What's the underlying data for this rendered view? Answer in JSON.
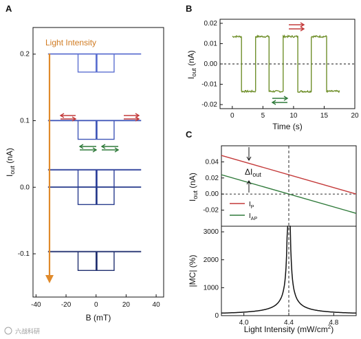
{
  "figure": {
    "panels": [
      "A",
      "B",
      "C"
    ],
    "watermark": "六战科研"
  },
  "chart_data": [
    {
      "id": "A",
      "type": "line",
      "xlabel": "B (mT)",
      "ylabel": "I_out (nA)",
      "xlim": [
        -42,
        45
      ],
      "ylim": [
        -0.165,
        0.24
      ],
      "xticks": [
        -40,
        -20,
        0,
        20,
        40
      ],
      "yticks": [
        -0.1,
        0.0,
        0.1,
        0.2
      ],
      "annotation": "Light Intensity",
      "hysteresis_loops": [
        {
          "baseline": 0.2,
          "step_high": 0.2,
          "step_low": 0.173,
          "switch_field": 12,
          "inner_step": 0.186,
          "color": "#5b6fd0"
        },
        {
          "baseline": 0.1,
          "step_high": 0.1,
          "step_low": 0.072,
          "switch_field": 12,
          "inner_step": 0.086,
          "color": "#3f56b8"
        },
        {
          "baseline": 0.026,
          "step_high": 0.026,
          "step_low": 0.0,
          "switch_field": 12,
          "inner_step": 0.012,
          "color": "#2c3f9a"
        },
        {
          "baseline": 0.0,
          "step_high": 0.0,
          "step_low": -0.026,
          "switch_field": 12,
          "inner_step": -0.013,
          "color": "#263a8c"
        },
        {
          "baseline": -0.097,
          "step_high": -0.097,
          "step_low": -0.125,
          "switch_field": 12,
          "inner_step": -0.11,
          "color": "#1f2e6e"
        }
      ],
      "field_range": [
        -32,
        30
      ]
    },
    {
      "id": "B",
      "type": "line",
      "xlabel": "Time (s)",
      "ylabel": "I_out (nA)",
      "xlim": [
        -2,
        20
      ],
      "ylim": [
        -0.022,
        0.022
      ],
      "xticks": [
        0,
        5,
        10,
        15,
        20
      ],
      "yticks": [
        -0.02,
        -0.01,
        0.0,
        0.01,
        0.02
      ],
      "series": [
        {
          "color": "#6f8f2a",
          "high": 0.0135,
          "low": -0.0135,
          "segments": [
            [
              0,
              1.5,
              "high"
            ],
            [
              1.5,
              3.8,
              "low"
            ],
            [
              3.8,
              6.0,
              "high"
            ],
            [
              6.0,
              8.3,
              "low"
            ],
            [
              8.3,
              10.7,
              "high"
            ],
            [
              10.7,
              12.9,
              "low"
            ],
            [
              12.9,
              15.4,
              "high"
            ],
            [
              15.4,
              17.5,
              "low"
            ]
          ]
        }
      ],
      "zero_line": "dashed"
    },
    {
      "id": "C_top",
      "type": "line",
      "xlabel": "",
      "ylabel": "I_out (nA)",
      "xlim": [
        3.8,
        5.0
      ],
      "ylim": [
        -0.04,
        0.06
      ],
      "yticks": [
        -0.02,
        0.0,
        0.02,
        0.04
      ],
      "series": [
        {
          "name": "I_P",
          "color": "#c43a3a",
          "x": [
            3.8,
            5.0
          ],
          "values": [
            0.048,
            0.0
          ]
        },
        {
          "name": "I_AP",
          "color": "#2f7a3a",
          "x": [
            3.8,
            5.0
          ],
          "values": [
            0.024,
            -0.024
          ]
        }
      ],
      "annotation": "ΔI_out",
      "vline_x": 4.4
    },
    {
      "id": "C_bottom",
      "type": "line",
      "xlabel": "Light Intensity (mW/cm²)",
      "ylabel": "|MC| (%)",
      "xlim": [
        3.8,
        5.0
      ],
      "ylim": [
        0,
        3200
      ],
      "xticks": [
        4.0,
        4.4,
        4.8
      ],
      "yticks": [
        0,
        1000,
        2000,
        3000
      ],
      "series": [
        {
          "color": "#111111",
          "pole_x": 4.4,
          "x": [
            3.8,
            4.0,
            4.2,
            4.3,
            4.35,
            4.38,
            4.39,
            4.4,
            4.41,
            4.42,
            4.45,
            4.5,
            4.6,
            4.8,
            5.0
          ],
          "values": [
            100,
            150,
            300,
            600,
            1200,
            2200,
            3200,
            3200,
            3200,
            2200,
            1100,
            600,
            300,
            130,
            80
          ]
        }
      ],
      "vline_x": 4.4
    }
  ],
  "labels": {
    "A_x": "B (mT)",
    "A_y_main": "I",
    "A_y_sub": "out",
    "A_y_unit": " (nA)",
    "A_light": "Light Intensity",
    "B_x": "Time (s)",
    "B_y_main": "I",
    "B_y_sub": "out",
    "B_y_unit": " (nA)",
    "C_top_y_main": "I",
    "C_top_y_sub": "out",
    "C_top_y_unit": " (nA)",
    "C_bottom_y": "|MC| (%)",
    "C_x": "Light Intensity (mW/cm",
    "C_x_sup": "2",
    "C_x_end": ")",
    "delta_main": "ΔI",
    "delta_sub": "out",
    "legend_p_main": "I",
    "legend_p_sub": "P",
    "legend_ap_main": "I",
    "legend_ap_sub": "AP"
  }
}
